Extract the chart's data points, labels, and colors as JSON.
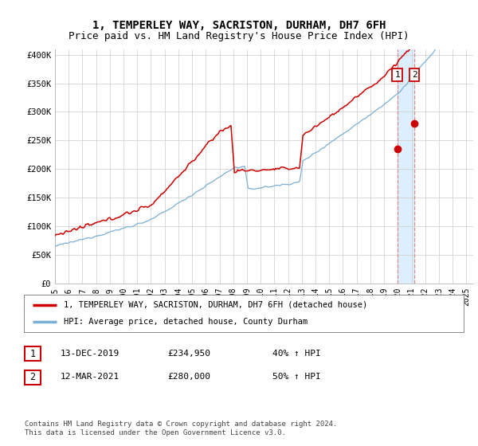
{
  "title": "1, TEMPERLEY WAY, SACRISTON, DURHAM, DH7 6FH",
  "subtitle": "Price paid vs. HM Land Registry's House Price Index (HPI)",
  "ylabel_ticks": [
    "£0",
    "£50K",
    "£100K",
    "£150K",
    "£200K",
    "£250K",
    "£300K",
    "£350K",
    "£400K"
  ],
  "ytick_vals": [
    0,
    50000,
    100000,
    150000,
    200000,
    250000,
    300000,
    350000,
    400000
  ],
  "ylim": [
    0,
    410000
  ],
  "xlim_start": 1995.0,
  "xlim_end": 2025.5,
  "sale1_year": 2019,
  "sale1_month": 12,
  "sale1_label": "1",
  "sale1_price": 234950,
  "sale2_year": 2021,
  "sale2_month": 3,
  "sale2_label": "2",
  "sale2_price": 280000,
  "line1_color": "#cc0000",
  "line2_color": "#7bafd4",
  "shading_color": "#ddeeff",
  "legend1_text": "1, TEMPERLEY WAY, SACRISTON, DURHAM, DH7 6FH (detached house)",
  "legend2_text": "HPI: Average price, detached house, County Durham",
  "table_row1": [
    "1",
    "13-DEC-2019",
    "£234,950",
    "40% ↑ HPI"
  ],
  "table_row2": [
    "2",
    "12-MAR-2021",
    "£280,000",
    "50% ↑ HPI"
  ],
  "footer": "Contains HM Land Registry data © Crown copyright and database right 2024.\nThis data is licensed under the Open Government Licence v3.0.",
  "title_fontsize": 10,
  "subtitle_fontsize": 9,
  "axis_fontsize": 7.5,
  "background_color": "#ffffff"
}
